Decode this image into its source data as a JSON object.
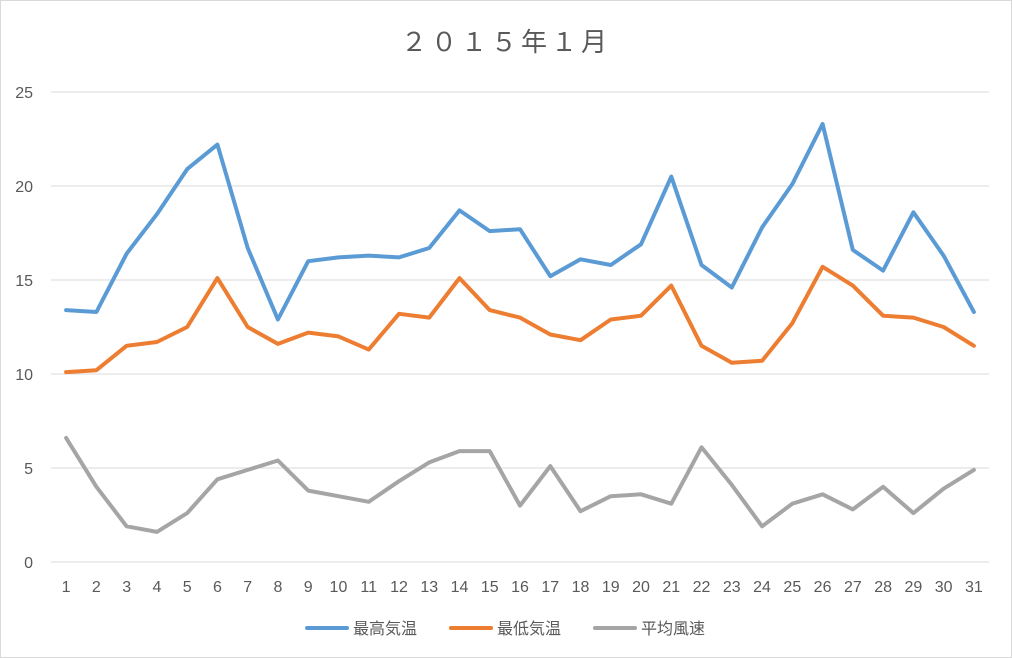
{
  "chart_data": {
    "type": "line",
    "title": "２０１５年１月",
    "xlabel": "",
    "ylabel": "",
    "ylim": [
      0,
      25
    ],
    "yticks": [
      0,
      5,
      10,
      15,
      20,
      25
    ],
    "grid": true,
    "legend_position": "bottom",
    "x": [
      1,
      2,
      3,
      4,
      5,
      6,
      7,
      8,
      9,
      10,
      11,
      12,
      13,
      14,
      15,
      16,
      17,
      18,
      19,
      20,
      21,
      22,
      23,
      24,
      25,
      26,
      27,
      28,
      29,
      30,
      31
    ],
    "series": [
      {
        "name": "最高気温",
        "color": "#5b9bd5",
        "values": [
          13.4,
          13.3,
          16.4,
          18.5,
          20.9,
          22.2,
          16.7,
          12.9,
          16.0,
          16.2,
          16.3,
          16.2,
          16.7,
          18.7,
          17.6,
          17.7,
          15.2,
          16.1,
          15.8,
          16.9,
          20.5,
          15.8,
          14.6,
          17.8,
          20.1,
          23.3,
          16.6,
          15.5,
          18.6,
          16.3,
          13.3
        ]
      },
      {
        "name": "最低気温",
        "color": "#ed7d31",
        "values": [
          10.1,
          10.2,
          11.5,
          11.7,
          12.5,
          15.1,
          12.5,
          11.6,
          12.2,
          12.0,
          11.3,
          13.2,
          13.0,
          15.1,
          13.4,
          13.0,
          12.1,
          11.8,
          12.9,
          13.1,
          14.7,
          11.5,
          10.6,
          10.7,
          12.7,
          15.7,
          14.7,
          13.1,
          13.0,
          12.5,
          11.5
        ]
      },
      {
        "name": "平均風速",
        "color": "#a5a5a5",
        "values": [
          6.6,
          4.0,
          1.9,
          1.6,
          2.6,
          4.4,
          4.9,
          5.4,
          3.8,
          3.5,
          3.2,
          4.3,
          5.3,
          5.9,
          5.9,
          3.0,
          5.1,
          2.7,
          3.5,
          3.6,
          3.1,
          6.1,
          4.1,
          1.9,
          3.1,
          3.6,
          2.8,
          4.0,
          2.6,
          3.9,
          4.9
        ]
      }
    ]
  }
}
